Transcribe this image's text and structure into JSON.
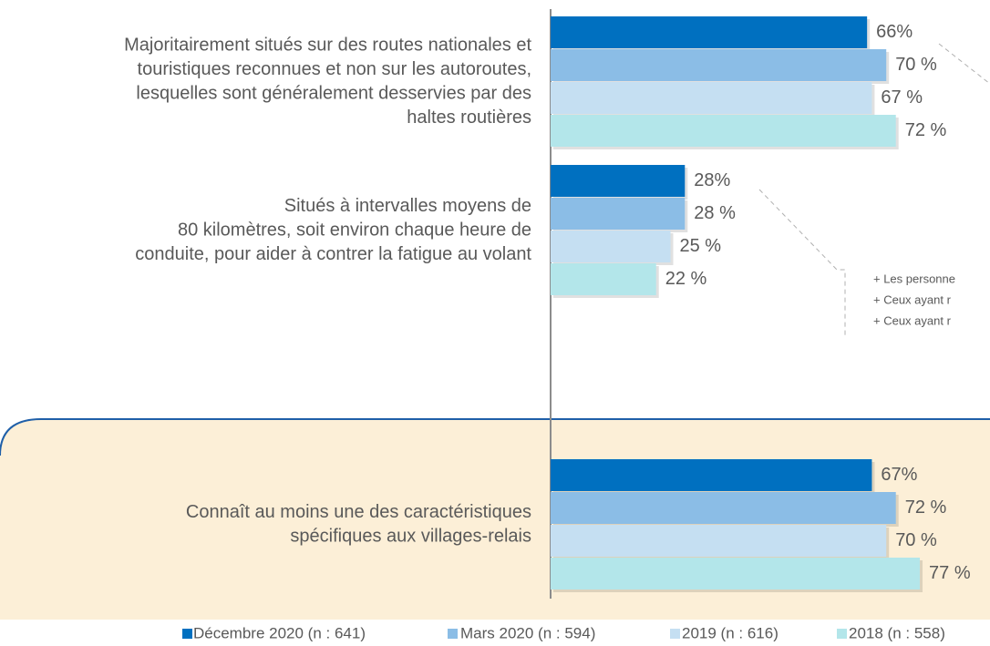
{
  "chart_data": {
    "type": "bar",
    "orientation": "horizontal",
    "categories": [
      [
        "Majoritairement situés sur des routes nationales et",
        "touristiques reconnues et non sur les autoroutes,",
        "lesquelles sont généralement desservies par des",
        "haltes routières"
      ],
      [
        "Situés à intervalles moyens de",
        "80 kilomètres, soit environ chaque heure de",
        "conduite, pour aider à contrer la fatigue au volant"
      ],
      [
        "Connaît au moins une des caractéristiques",
        "spécifiques aux villages-relais"
      ]
    ],
    "series": [
      {
        "name": "Décembre 2020 (n : 641)",
        "color": "#0070c0",
        "values": [
          66,
          28,
          67
        ],
        "value_labels": [
          "66%",
          "28%",
          "67%"
        ]
      },
      {
        "name": "Mars 2020 (n : 594)",
        "color": "#8bbde6",
        "values": [
          70,
          28,
          72
        ],
        "value_labels": [
          "70 %",
          "28 %",
          "72 %"
        ]
      },
      {
        "name": "2019 (n : 616)",
        "color": "#c5dff2",
        "values": [
          67,
          25,
          70
        ],
        "value_labels": [
          "67 %",
          "25 %",
          "70 %"
        ]
      },
      {
        "name": "2018 (n : 558)",
        "color": "#b3e6ea",
        "values": [
          72,
          22,
          77
        ],
        "value_labels": [
          "72 %",
          "22 %",
          "77 %"
        ]
      }
    ],
    "xlim": [
      0,
      100
    ],
    "annotations": [
      "+ Les personne",
      "+ Ceux ayant r",
      "+ Ceux ayant r"
    ],
    "legend": "bottom"
  }
}
